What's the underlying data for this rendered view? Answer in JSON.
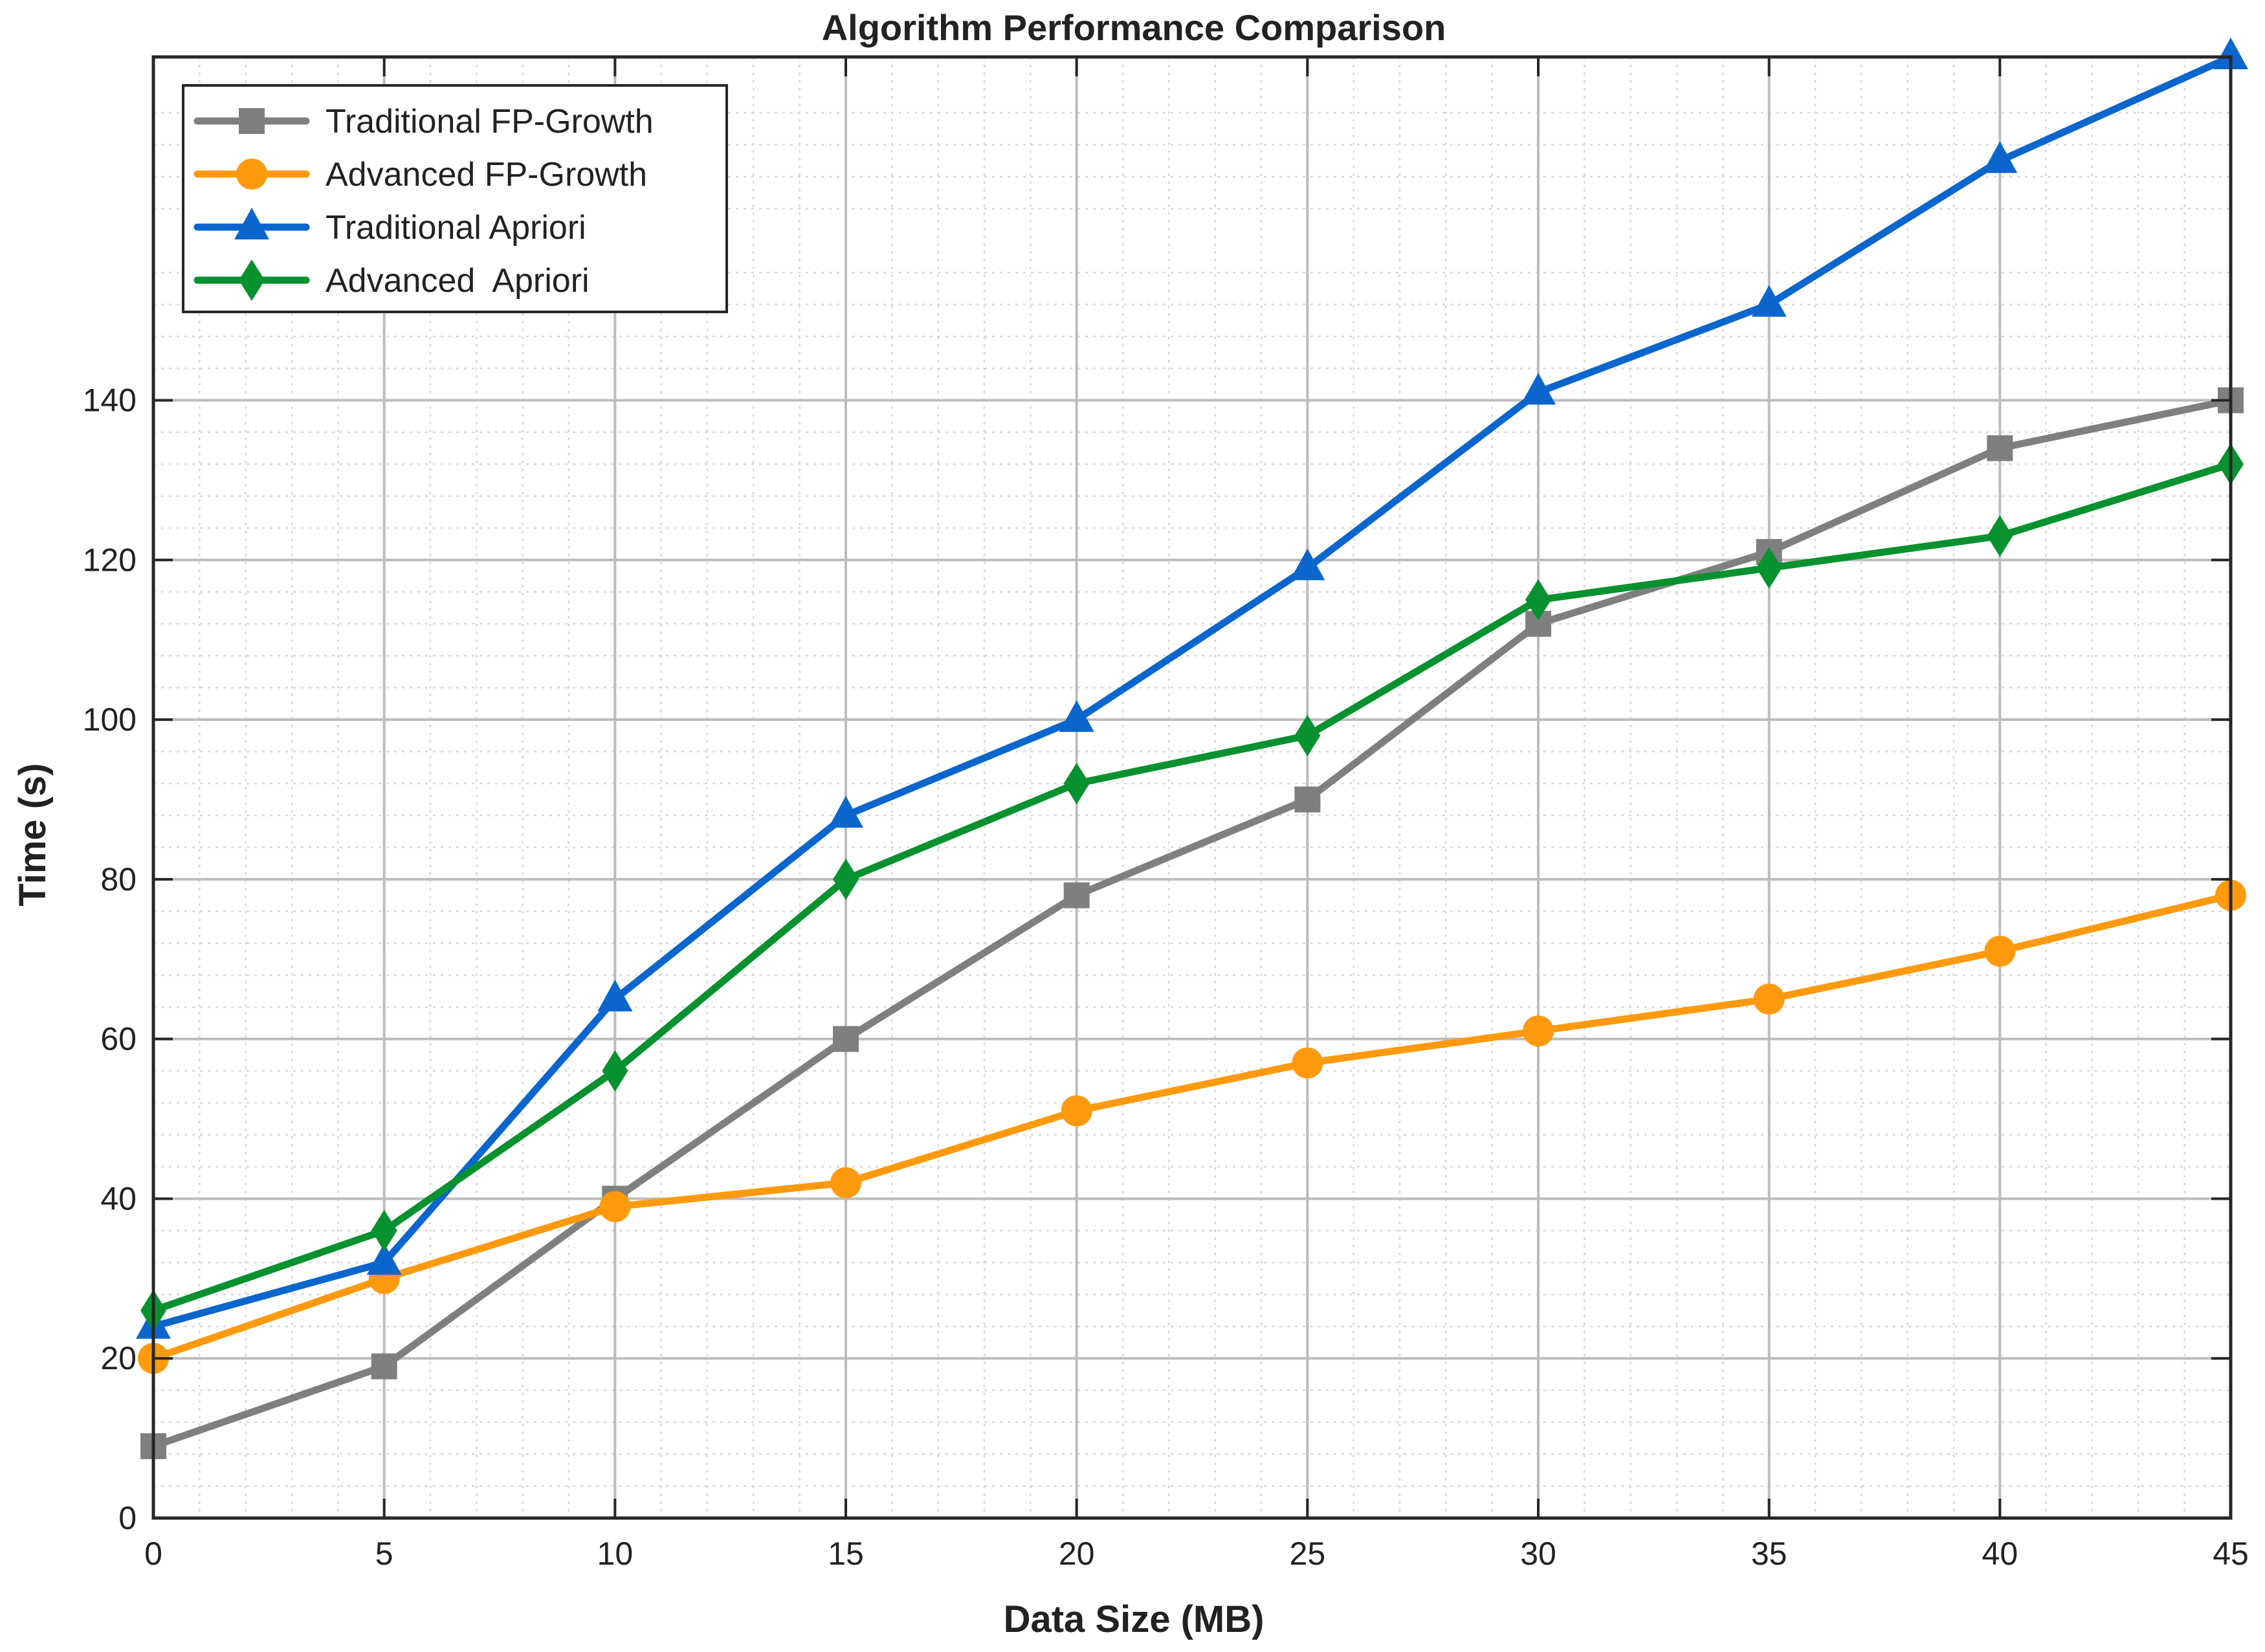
{
  "chart_data": {
    "type": "line",
    "title": "Algorithm Performance Comparison",
    "xlabel": "Data Size (MB)",
    "ylabel": "Time (s)",
    "xlim": [
      0,
      45
    ],
    "ylim": [
      0,
      183
    ],
    "x_ticks": [
      0,
      5,
      10,
      15,
      20,
      25,
      30,
      35,
      40,
      45
    ],
    "y_ticks": [
      0,
      20,
      40,
      60,
      80,
      100,
      120,
      140
    ],
    "grid": true,
    "minor_grid": true,
    "legend_position": "top-left",
    "x": [
      0,
      5,
      10,
      15,
      20,
      25,
      30,
      35,
      40,
      45
    ],
    "series": [
      {
        "name": "Traditional FP-Growth",
        "color": "#7f7f7f",
        "marker": "square",
        "values": [
          9,
          19,
          40,
          60,
          78,
          90,
          112,
          121,
          134,
          140
        ]
      },
      {
        "name": "Advanced FP-Growth",
        "color": "#ff9a0e",
        "marker": "circle",
        "values": [
          20,
          30,
          39,
          42,
          51,
          57,
          61,
          65,
          71,
          78
        ]
      },
      {
        "name": "Traditional Apriori",
        "color": "#0a66cc",
        "marker": "triangle",
        "values": [
          24,
          32,
          65,
          88,
          100,
          119,
          141,
          152,
          170,
          183
        ]
      },
      {
        "name": "Advanced  Apriori",
        "color": "#07922f",
        "marker": "diamond",
        "values": [
          26,
          36,
          56,
          80,
          92,
          98,
          115,
          119,
          123,
          132
        ]
      }
    ]
  }
}
